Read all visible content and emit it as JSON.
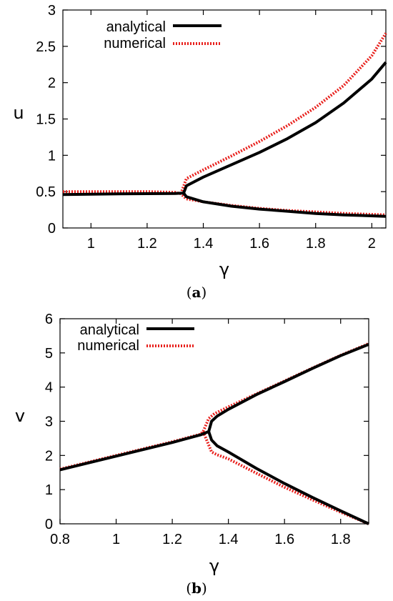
{
  "chart_data": [
    {
      "type": "line",
      "panel_label": "a",
      "xlabel": "γ",
      "ylabel": "u",
      "xlim": [
        0.9,
        2.05
      ],
      "ylim": [
        0,
        3
      ],
      "xticks": [
        1,
        1.2,
        1.4,
        1.6,
        1.8,
        2
      ],
      "xtick_labels": [
        "1",
        "1.2",
        "1.4",
        "1.6",
        "1.8",
        "2"
      ],
      "yticks": [
        0,
        0.5,
        1,
        1.5,
        2,
        2.5,
        3
      ],
      "ytick_labels": [
        "0",
        "0.5",
        "1",
        "1.5",
        "2",
        "2.5",
        "3"
      ],
      "legend_position": "top-left",
      "series": [
        {
          "name": "analytical",
          "color": "#000000",
          "style": "solid",
          "branches": [
            [
              [
                0.9,
                0.46
              ],
              [
                1.0,
                0.465
              ],
              [
                1.1,
                0.47
              ],
              [
                1.2,
                0.472
              ],
              [
                1.3,
                0.475
              ],
              [
                1.33,
                0.48
              ],
              [
                1.34,
                0.43
              ],
              [
                1.4,
                0.36
              ],
              [
                1.5,
                0.3
              ],
              [
                1.6,
                0.26
              ],
              [
                1.7,
                0.23
              ],
              [
                1.8,
                0.2
              ],
              [
                1.9,
                0.18
              ],
              [
                2.05,
                0.16
              ]
            ],
            [
              [
                1.33,
                0.48
              ],
              [
                1.34,
                0.58
              ],
              [
                1.4,
                0.7
              ],
              [
                1.5,
                0.87
              ],
              [
                1.6,
                1.04
              ],
              [
                1.7,
                1.23
              ],
              [
                1.8,
                1.45
              ],
              [
                1.9,
                1.72
              ],
              [
                2.0,
                2.05
              ],
              [
                2.05,
                2.28
              ]
            ]
          ]
        },
        {
          "name": "numerical",
          "color": "#e8201c",
          "style": "dotted",
          "branches": [
            [
              [
                0.9,
                0.5
              ],
              [
                1.0,
                0.5
              ],
              [
                1.1,
                0.5
              ],
              [
                1.2,
                0.5
              ],
              [
                1.3,
                0.49
              ],
              [
                1.32,
                0.47
              ],
              [
                1.34,
                0.4
              ],
              [
                1.4,
                0.36
              ],
              [
                1.5,
                0.31
              ],
              [
                1.6,
                0.27
              ],
              [
                1.7,
                0.24
              ],
              [
                1.8,
                0.22
              ],
              [
                1.9,
                0.2
              ],
              [
                2.05,
                0.18
              ]
            ],
            [
              [
                1.32,
                0.47
              ],
              [
                1.34,
                0.68
              ],
              [
                1.4,
                0.8
              ],
              [
                1.5,
                0.99
              ],
              [
                1.6,
                1.19
              ],
              [
                1.7,
                1.41
              ],
              [
                1.8,
                1.66
              ],
              [
                1.9,
                1.96
              ],
              [
                2.0,
                2.37
              ],
              [
                2.05,
                2.68
              ]
            ]
          ]
        }
      ]
    },
    {
      "type": "line",
      "panel_label": "b",
      "xlabel": "γ",
      "ylabel": "v",
      "xlim": [
        0.8,
        1.9
      ],
      "ylim": [
        0,
        6
      ],
      "xticks": [
        0.8,
        1,
        1.2,
        1.4,
        1.6,
        1.8
      ],
      "xtick_labels": [
        "0.8",
        "1",
        "1.2",
        "1.4",
        "1.6",
        "1.8"
      ],
      "yticks": [
        0,
        1,
        2,
        3,
        4,
        5,
        6
      ],
      "ytick_labels": [
        "0",
        "1",
        "2",
        "3",
        "4",
        "5",
        "6"
      ],
      "legend_position": "top-left",
      "series": [
        {
          "name": "analytical",
          "color": "#000000",
          "style": "solid",
          "branches": [
            [
              [
                0.8,
                1.58
              ],
              [
                1.0,
                1.98
              ],
              [
                1.2,
                2.38
              ],
              [
                1.3,
                2.6
              ],
              [
                1.33,
                2.7
              ],
              [
                1.34,
                3.0
              ],
              [
                1.36,
                3.15
              ],
              [
                1.4,
                3.35
              ],
              [
                1.5,
                3.78
              ],
              [
                1.6,
                4.16
              ],
              [
                1.7,
                4.55
              ],
              [
                1.8,
                4.92
              ],
              [
                1.9,
                5.25
              ]
            ],
            [
              [
                1.33,
                2.7
              ],
              [
                1.34,
                2.45
              ],
              [
                1.36,
                2.28
              ],
              [
                1.4,
                2.1
              ],
              [
                1.5,
                1.62
              ],
              [
                1.6,
                1.18
              ],
              [
                1.7,
                0.77
              ],
              [
                1.8,
                0.38
              ],
              [
                1.9,
                0.0
              ]
            ]
          ]
        },
        {
          "name": "numerical",
          "color": "#e8201c",
          "style": "dotted",
          "branches": [
            [
              [
                0.8,
                1.6
              ],
              [
                1.0,
                2.0
              ],
              [
                1.2,
                2.4
              ],
              [
                1.3,
                2.62
              ],
              [
                1.31,
                2.7
              ],
              [
                1.33,
                3.08
              ],
              [
                1.35,
                3.22
              ],
              [
                1.4,
                3.42
              ],
              [
                1.5,
                3.8
              ],
              [
                1.6,
                4.18
              ],
              [
                1.7,
                4.56
              ],
              [
                1.8,
                4.93
              ],
              [
                1.9,
                5.27
              ]
            ],
            [
              [
                1.31,
                2.7
              ],
              [
                1.34,
                2.1
              ],
              [
                1.36,
                2.02
              ],
              [
                1.4,
                1.9
              ],
              [
                1.5,
                1.48
              ],
              [
                1.6,
                1.07
              ],
              [
                1.7,
                0.7
              ],
              [
                1.8,
                0.34
              ],
              [
                1.9,
                0.0
              ]
            ]
          ]
        }
      ]
    }
  ]
}
